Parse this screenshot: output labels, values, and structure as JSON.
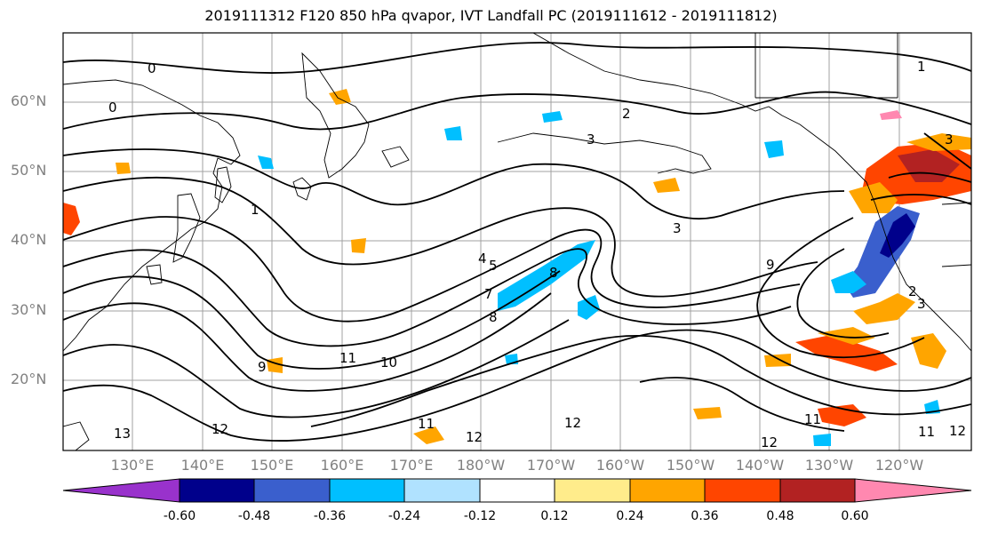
{
  "title": "2019111312 F120 850 hPa qvapor, IVT Landfall PC (2019111612 - 2019111812)",
  "lat_labels": [
    "60°N",
    "50°N",
    "40°N",
    "30°N",
    "20°N"
  ],
  "lon_labels": [
    "130°E",
    "140°E",
    "150°E",
    "160°E",
    "170°E",
    "180°W",
    "170°W",
    "160°W",
    "150°W",
    "140°W",
    "130°W",
    "120°W"
  ],
  "colorbar": {
    "colors": [
      "#9932cc",
      "#00008b",
      "#3a5fcd",
      "#00bfff",
      "#b0e2ff",
      "#ffffff",
      "#ffec8b",
      "#ffa500",
      "#ff4500",
      "#b22222",
      "#ff88b0"
    ],
    "tick_labels": [
      "-0.60",
      "-0.48",
      "-0.36",
      "-0.24",
      "-0.12",
      "0.12",
      "0.24",
      "0.36",
      "0.48",
      "0.60"
    ]
  },
  "contour_labels": [
    "0",
    "0",
    "1",
    "2",
    "3",
    "3",
    "3",
    "4",
    "5",
    "7",
    "8",
    "8",
    "9",
    "9",
    "10",
    "11",
    "11",
    "11",
    "12",
    "12",
    "12",
    "12",
    "13",
    "1",
    "2",
    "3",
    "11",
    "12"
  ]
}
